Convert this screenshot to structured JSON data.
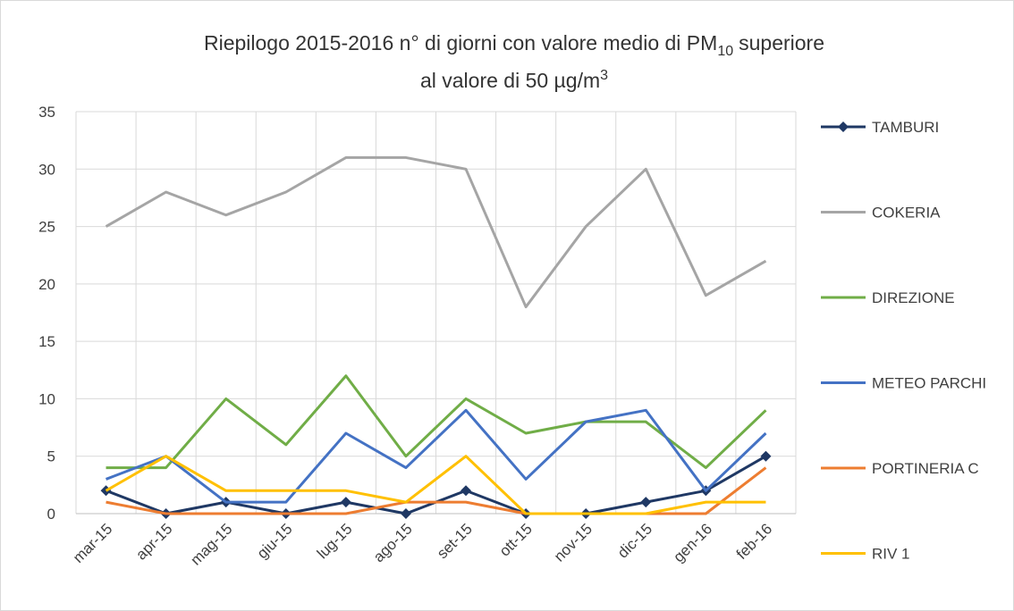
{
  "chart_data": {
    "type": "line",
    "title": [
      "Riepilogo 2015-2016  n° di giorni con valore medio di PM",
      "10",
      "superiore",
      "al valore di 50 µg/m",
      "3"
    ],
    "categories": [
      "mar-15",
      "apr-15",
      "mag-15",
      "giu-15",
      "lug-15",
      "ago-15",
      "set-15",
      "ott-15",
      "nov-15",
      "dic-15",
      "gen-16",
      "feb-16"
    ],
    "series": [
      {
        "name": "TAMBURI",
        "color": "#1f3864",
        "marker": "diamond",
        "values": [
          2,
          0,
          1,
          0,
          1,
          0,
          2,
          0,
          0,
          1,
          2,
          5
        ]
      },
      {
        "name": "COKERIA",
        "color": "#a5a5a5",
        "values": [
          25,
          28,
          26,
          28,
          31,
          31,
          30,
          18,
          25,
          30,
          19,
          22
        ]
      },
      {
        "name": "DIREZIONE",
        "color": "#70ad47",
        "values": [
          4,
          4,
          10,
          6,
          12,
          5,
          10,
          7,
          8,
          8,
          4,
          9
        ]
      },
      {
        "name": "METEO PARCHI",
        "color": "#4472c4",
        "values": [
          3,
          5,
          1,
          1,
          7,
          4,
          9,
          3,
          8,
          9,
          2,
          7
        ]
      },
      {
        "name": "PORTINERIA C",
        "color": "#ed7d31",
        "values": [
          1,
          0,
          0,
          0,
          0,
          1,
          1,
          0,
          0,
          0,
          0,
          4
        ]
      },
      {
        "name": "RIV 1",
        "color": "#ffc000",
        "values": [
          2,
          5,
          2,
          2,
          2,
          1,
          5,
          0,
          0,
          0,
          1,
          1
        ]
      }
    ],
    "ylim": [
      0,
      35
    ],
    "yticks": [
      0,
      5,
      10,
      15,
      20,
      25,
      30,
      35
    ],
    "grid": true,
    "legend": "right"
  }
}
